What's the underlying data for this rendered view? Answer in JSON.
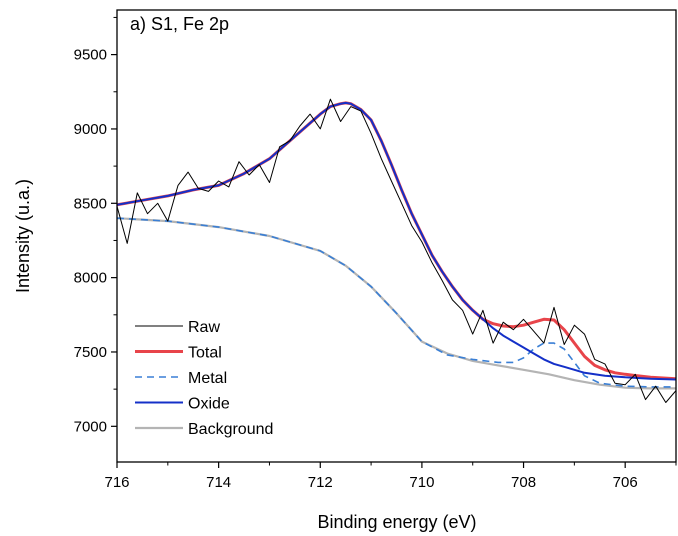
{
  "chart_data": {
    "type": "line",
    "panel_label": "a) S1, Fe 2p",
    "xlabel": "Binding energy (eV)",
    "ylabel": "Intensity (u.a.)",
    "xlim": [
      716,
      705
    ],
    "ylim": [
      6760,
      9800
    ],
    "x_reversed": true,
    "x_ticks": [
      716,
      714,
      712,
      710,
      708,
      706
    ],
    "y_ticks": [
      7000,
      7500,
      8000,
      8500,
      9000,
      9500
    ],
    "grid": false,
    "legend_position": "bottom-left",
    "series": [
      {
        "name": "Raw",
        "color": "#000000",
        "style": "solid",
        "x": [
          716.0,
          715.8,
          715.6,
          715.4,
          715.2,
          715.0,
          714.8,
          714.6,
          714.4,
          714.2,
          714.0,
          713.8,
          713.6,
          713.4,
          713.2,
          713.0,
          712.8,
          712.6,
          712.4,
          712.2,
          712.0,
          711.8,
          711.6,
          711.4,
          711.2,
          711.0,
          710.8,
          710.6,
          710.4,
          710.2,
          710.0,
          709.8,
          709.6,
          709.4,
          709.2,
          709.0,
          708.8,
          708.6,
          708.4,
          708.2,
          708.0,
          707.8,
          707.6,
          707.4,
          707.2,
          707.0,
          706.8,
          706.6,
          706.4,
          706.2,
          706.0,
          705.8,
          705.6,
          705.4,
          705.2,
          705.0
        ],
        "values": [
          8480,
          8230,
          8570,
          8430,
          8500,
          8380,
          8620,
          8710,
          8600,
          8580,
          8650,
          8610,
          8780,
          8690,
          8760,
          8640,
          8880,
          8920,
          9020,
          9100,
          9000,
          9200,
          9050,
          9150,
          9120,
          8970,
          8800,
          8650,
          8500,
          8350,
          8240,
          8100,
          7980,
          7850,
          7780,
          7620,
          7780,
          7560,
          7700,
          7650,
          7720,
          7640,
          7560,
          7800,
          7550,
          7680,
          7620,
          7450,
          7420,
          7290,
          7280,
          7350,
          7180,
          7270,
          7160,
          7240
        ]
      },
      {
        "name": "Total",
        "color": "#e8444a",
        "style": "solid",
        "x": [
          716.0,
          715.5,
          715.0,
          714.5,
          714.0,
          713.5,
          713.0,
          712.5,
          712.0,
          711.8,
          711.6,
          711.5,
          711.4,
          711.2,
          711.0,
          710.8,
          710.6,
          710.4,
          710.2,
          710.0,
          709.8,
          709.6,
          709.4,
          709.2,
          709.0,
          708.8,
          708.6,
          708.4,
          708.2,
          708.0,
          707.8,
          707.6,
          707.4,
          707.2,
          707.0,
          706.8,
          706.6,
          706.4,
          706.2,
          706.0,
          705.5,
          705.0
        ],
        "values": [
          8490,
          8520,
          8550,
          8590,
          8620,
          8700,
          8800,
          8950,
          9100,
          9150,
          9170,
          9175,
          9170,
          9130,
          9060,
          8920,
          8760,
          8590,
          8430,
          8290,
          8150,
          8040,
          7940,
          7850,
          7780,
          7720,
          7690,
          7675,
          7670,
          7680,
          7700,
          7720,
          7715,
          7650,
          7560,
          7470,
          7410,
          7380,
          7360,
          7350,
          7330,
          7320
        ]
      },
      {
        "name": "Metal",
        "color": "#3a7fd5",
        "style": "dashed",
        "x": [
          716.0,
          715.0,
          714.0,
          713.0,
          712.0,
          711.5,
          711.0,
          710.5,
          710.0,
          709.5,
          709.0,
          708.5,
          708.2,
          708.0,
          707.8,
          707.6,
          707.4,
          707.2,
          707.0,
          706.8,
          706.5,
          706.0,
          705.5,
          705.0
        ],
        "values": [
          8400,
          8380,
          8340,
          8280,
          8180,
          8080,
          7940,
          7760,
          7570,
          7480,
          7450,
          7430,
          7430,
          7460,
          7520,
          7560,
          7560,
          7520,
          7430,
          7340,
          7290,
          7270,
          7265,
          7265
        ]
      },
      {
        "name": "Oxide",
        "color": "#1430c8",
        "style": "solid",
        "x": [
          716.0,
          715.5,
          715.0,
          714.5,
          714.0,
          713.5,
          713.0,
          712.5,
          712.0,
          711.8,
          711.6,
          711.5,
          711.4,
          711.2,
          711.0,
          710.8,
          710.6,
          710.4,
          710.2,
          710.0,
          709.8,
          709.6,
          709.4,
          709.2,
          709.0,
          708.8,
          708.6,
          708.4,
          708.2,
          708.0,
          707.8,
          707.6,
          707.4,
          707.2,
          707.0,
          706.8,
          706.6,
          706.4,
          706.2,
          706.0,
          705.5,
          705.0
        ],
        "values": [
          8490,
          8520,
          8550,
          8590,
          8620,
          8700,
          8800,
          8950,
          9100,
          9150,
          9170,
          9175,
          9170,
          9130,
          9060,
          8920,
          8760,
          8590,
          8430,
          8290,
          8150,
          8040,
          7940,
          7850,
          7780,
          7720,
          7660,
          7610,
          7570,
          7530,
          7490,
          7450,
          7420,
          7400,
          7380,
          7360,
          7350,
          7340,
          7335,
          7330,
          7320,
          7315
        ]
      },
      {
        "name": "Background",
        "color": "#b4b4b4",
        "style": "solid",
        "x": [
          716.0,
          715.0,
          714.0,
          713.0,
          712.0,
          711.5,
          711.0,
          710.5,
          710.0,
          709.5,
          709.0,
          708.5,
          708.0,
          707.5,
          707.0,
          706.5,
          706.0,
          705.5,
          705.0
        ],
        "values": [
          8400,
          8380,
          8340,
          8280,
          8180,
          8080,
          7940,
          7760,
          7570,
          7490,
          7440,
          7410,
          7380,
          7350,
          7310,
          7280,
          7260,
          7255,
          7255
        ]
      }
    ]
  }
}
